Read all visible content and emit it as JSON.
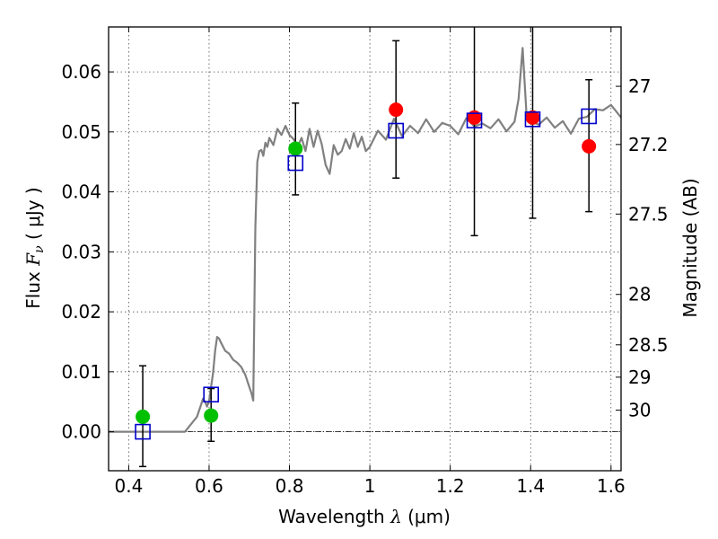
{
  "chart_data": {
    "type": "scatter",
    "title": "",
    "xlabel": {
      "text": "Wavelength",
      "symbol": "λ",
      "unit": "(μm)"
    },
    "ylabel": {
      "text": "Flux",
      "symbol": "F",
      "subscript": "ν",
      "unit": "( μJy )"
    },
    "y2label": "Magnitude (AB)",
    "xlim": [
      0.35,
      1.625
    ],
    "ylim": [
      -0.0065,
      0.0675
    ],
    "grid": true,
    "x_ticks": [
      0.4,
      0.6,
      0.8,
      1.0,
      1.2,
      1.4,
      1.6
    ],
    "x_tick_labels": [
      "0.4",
      "0.6",
      "0.8",
      "1",
      "1.2",
      "1.4",
      "1.6"
    ],
    "y_ticks": [
      0.0,
      0.01,
      0.02,
      0.03,
      0.04,
      0.05,
      0.06
    ],
    "y_tick_labels": [
      "0.00",
      "0.01",
      "0.02",
      "0.03",
      "0.04",
      "0.05",
      "0.06"
    ],
    "y2_ticks": [
      {
        "label": "27",
        "flux": 0.0576
      },
      {
        "label": "27.2",
        "flux": 0.0479
      },
      {
        "label": "27.5",
        "flux": 0.0363
      },
      {
        "label": "28",
        "flux": 0.0229
      },
      {
        "label": "28.5",
        "flux": 0.0145
      },
      {
        "label": "29",
        "flux": 0.0091
      },
      {
        "label": "30",
        "flux": 0.0036
      }
    ],
    "colors": {
      "model": "#808080",
      "green_points": "#00c000",
      "red_points": "#ff0000",
      "squares": "#0000cc",
      "errorbars": "#000000",
      "zero_line": "#000000"
    },
    "series": [
      {
        "kind": "line",
        "x": [
          0.35,
          0.54,
          0.57,
          0.58,
          0.585,
          0.59,
          0.595,
          0.6,
          0.605,
          0.61,
          0.615,
          0.62,
          0.625,
          0.63,
          0.64,
          0.65,
          0.66,
          0.67,
          0.68,
          0.69,
          0.7,
          0.705,
          0.71,
          0.715,
          0.72,
          0.725,
          0.73,
          0.735,
          0.74,
          0.745,
          0.75,
          0.76,
          0.77,
          0.78,
          0.79,
          0.8,
          0.81,
          0.82,
          0.83,
          0.84,
          0.85,
          0.86,
          0.87,
          0.88,
          0.89,
          0.9,
          0.91,
          0.92,
          0.93,
          0.94,
          0.95,
          0.96,
          0.97,
          0.98,
          0.99,
          1.0,
          1.02,
          1.04,
          1.06,
          1.08,
          1.1,
          1.12,
          1.14,
          1.16,
          1.18,
          1.2,
          1.22,
          1.24,
          1.26,
          1.28,
          1.3,
          1.32,
          1.34,
          1.36,
          1.37,
          1.38,
          1.39,
          1.4,
          1.42,
          1.44,
          1.46,
          1.48,
          1.5,
          1.52,
          1.54,
          1.56,
          1.58,
          1.6,
          1.625
        ],
        "y": [
          0.0,
          0.0,
          0.0025,
          0.0045,
          0.0055,
          0.005,
          0.0042,
          0.0052,
          0.0075,
          0.0098,
          0.0135,
          0.0158,
          0.0155,
          0.0148,
          0.0135,
          0.013,
          0.012,
          0.0115,
          0.0108,
          0.0095,
          0.0075,
          0.0065,
          0.0052,
          0.034,
          0.045,
          0.0468,
          0.047,
          0.046,
          0.0482,
          0.0475,
          0.049,
          0.0478,
          0.0505,
          0.0495,
          0.051,
          0.0495,
          0.0488,
          0.0475,
          0.049,
          0.0468,
          0.0505,
          0.0475,
          0.0502,
          0.048,
          0.0445,
          0.043,
          0.0478,
          0.0462,
          0.0468,
          0.0488,
          0.0472,
          0.0498,
          0.0475,
          0.0492,
          0.0468,
          0.0475,
          0.0502,
          0.0487,
          0.0522,
          0.0493,
          0.051,
          0.0498,
          0.0521,
          0.05,
          0.0515,
          0.051,
          0.0496,
          0.0523,
          0.0509,
          0.0514,
          0.0506,
          0.0521,
          0.0501,
          0.0517,
          0.0555,
          0.064,
          0.0525,
          0.0518,
          0.0512,
          0.0524,
          0.0507,
          0.0518,
          0.0497,
          0.0522,
          0.0525,
          0.0538,
          0.0536,
          0.0545,
          0.0524
        ]
      },
      {
        "kind": "points",
        "marker": "circle",
        "color": "green",
        "points": [
          {
            "x": 0.435,
            "y": 0.0025
          },
          {
            "x": 0.605,
            "y": 0.0027
          },
          {
            "x": 0.815,
            "y": 0.0472
          }
        ]
      },
      {
        "kind": "points",
        "marker": "circle",
        "color": "red",
        "points": [
          {
            "x": 1.065,
            "y": 0.0537
          },
          {
            "x": 1.26,
            "y": 0.0524
          },
          {
            "x": 1.405,
            "y": 0.0524
          },
          {
            "x": 1.545,
            "y": 0.0476
          }
        ]
      },
      {
        "kind": "points",
        "marker": "square",
        "color": "blue",
        "points": [
          {
            "x": 0.435,
            "y": 0.0
          },
          {
            "x": 0.605,
            "y": 0.0062
          },
          {
            "x": 0.815,
            "y": 0.0448
          },
          {
            "x": 1.065,
            "y": 0.0502
          },
          {
            "x": 1.26,
            "y": 0.0519
          },
          {
            "x": 1.405,
            "y": 0.0521
          },
          {
            "x": 1.545,
            "y": 0.0526
          }
        ]
      },
      {
        "kind": "errorbars",
        "bars": [
          {
            "x": 0.435,
            "lo": -0.0058,
            "hi": 0.011
          },
          {
            "x": 0.605,
            "lo": -0.0016,
            "hi": 0.0072
          },
          {
            "x": 0.815,
            "lo": 0.0395,
            "hi": 0.0548
          },
          {
            "x": 1.065,
            "lo": 0.0423,
            "hi": 0.0652
          },
          {
            "x": 1.26,
            "lo": 0.0327,
            "hi": 0.0675
          },
          {
            "x": 1.405,
            "lo": 0.0356,
            "hi": 0.0675
          },
          {
            "x": 1.545,
            "lo": 0.0367,
            "hi": 0.0587
          }
        ]
      }
    ]
  }
}
